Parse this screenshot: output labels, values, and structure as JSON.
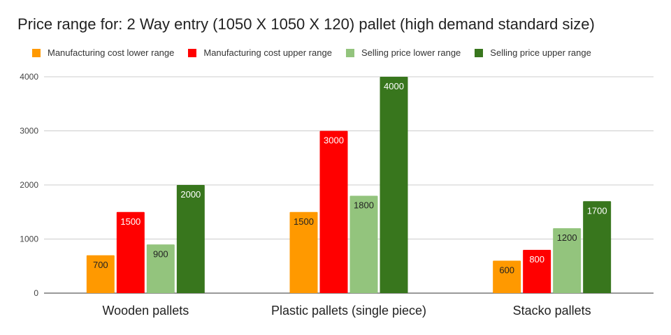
{
  "chart_data": {
    "type": "bar",
    "title": "Price range for: 2 Way entry (1050 X 1050 X 120) pallet (high demand standard size)",
    "xlabel": "",
    "ylabel": "",
    "categories": [
      "Wooden pallets",
      "Plastic pallets (single piece)",
      "Stacko pallets"
    ],
    "series": [
      {
        "name": "Manufacturing cost lower range",
        "color": "#ff9900",
        "values": [
          700,
          1500,
          600
        ]
      },
      {
        "name": "Manufacturing cost upper range",
        "color": "#ff0000",
        "values": [
          1500,
          3000,
          800
        ]
      },
      {
        "name": "Selling price lower range",
        "color": "#93c47d",
        "values": [
          900,
          1800,
          1200
        ]
      },
      {
        "name": "Selling price upper range",
        "color": "#38761d",
        "values": [
          2000,
          4000,
          1700
        ]
      }
    ],
    "ylim": [
      0,
      4000
    ],
    "yticks": [
      0,
      1000,
      2000,
      3000,
      4000
    ],
    "grid": true,
    "legend_position": "top",
    "data_labels": true
  }
}
